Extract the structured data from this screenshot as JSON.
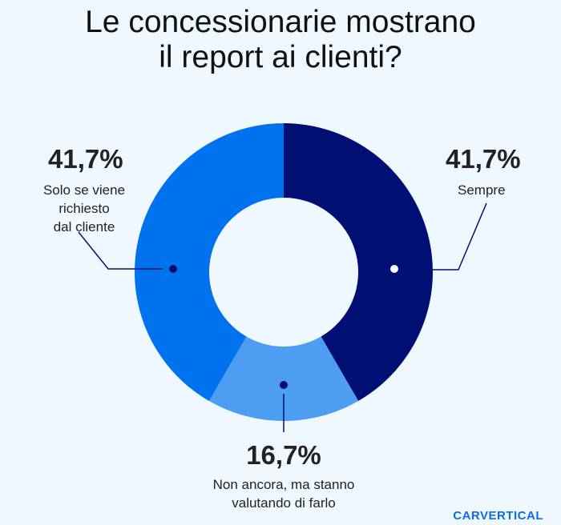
{
  "chart_data": {
    "type": "pie",
    "title": "Le concessionarie mostrano il report ai clienti?",
    "donut": true,
    "slices": [
      {
        "label": "Sempre",
        "value": 41.7,
        "value_label": "41,7%",
        "color": "#000f73"
      },
      {
        "label": "Non ancora, ma stanno valutando di farlo",
        "value": 16.7,
        "value_label": "16,7%",
        "color": "#4d9df3"
      },
      {
        "label": "Solo se viene richiesto dal cliente",
        "value": 41.7,
        "value_label": "41,7%",
        "color": "#0072ee"
      }
    ]
  },
  "title_lines": [
    "Le concessionarie mostrano",
    "il report ai clienti?"
  ],
  "labels": {
    "sempre": [
      "Sempre"
    ],
    "non_ancora": [
      "Non ancora, ma stanno",
      "valutando di farlo"
    ],
    "solo_se": [
      "Solo se viene",
      "richiesto",
      "dal cliente"
    ]
  },
  "brand": "CARVERTICAL"
}
